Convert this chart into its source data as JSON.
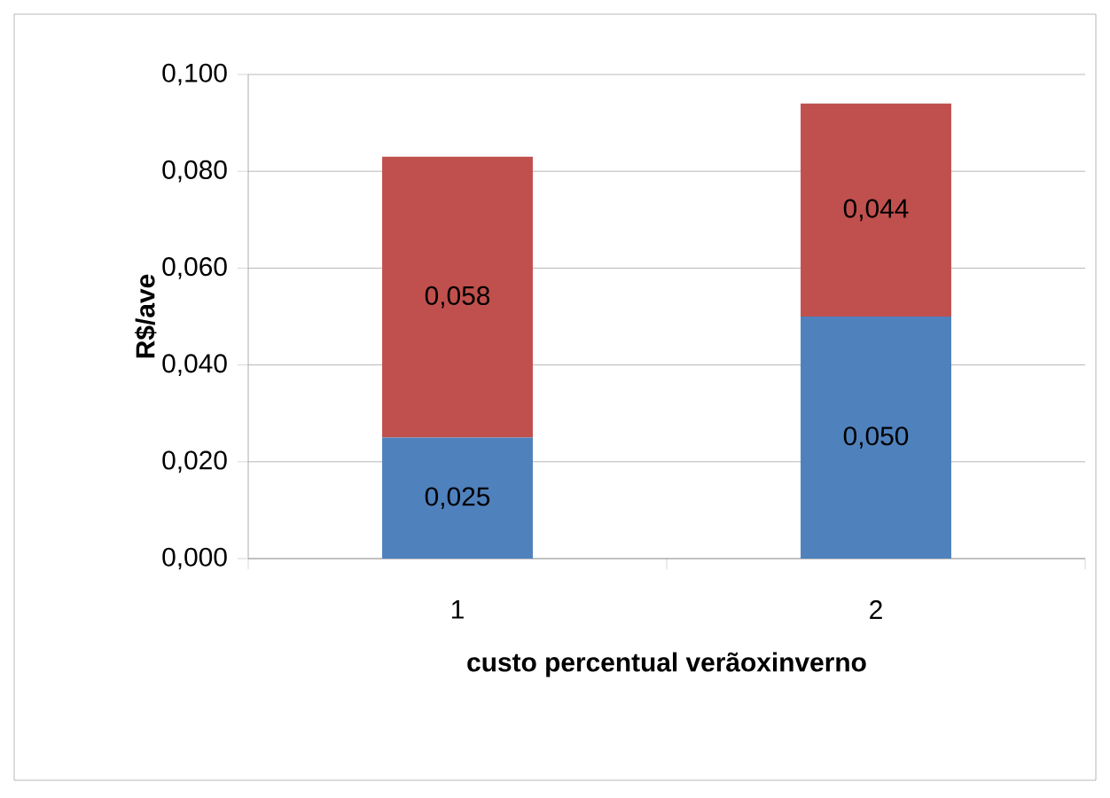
{
  "chart_data": {
    "type": "bar",
    "stacked": true,
    "xlabel": "custo percentual verãoxinverno",
    "ylabel": "R$/ave",
    "categories": [
      "1",
      "2"
    ],
    "series": [
      {
        "color": "#4f81bd",
        "values": [
          0.025,
          0.05
        ],
        "value_labels": [
          "0,025",
          "0,050"
        ]
      },
      {
        "color": "#c0504d",
        "values": [
          0.058,
          0.044
        ],
        "value_labels": [
          "0,058",
          "0,044"
        ]
      }
    ],
    "ylim": [
      0,
      0.1
    ],
    "yticks": [
      {
        "value": 0,
        "label": "0,000"
      },
      {
        "value": 0.02,
        "label": "0,020"
      },
      {
        "value": 0.04,
        "label": "0,040"
      },
      {
        "value": 0.06,
        "label": "0,060"
      },
      {
        "value": 0.08,
        "label": "0,080"
      },
      {
        "value": 0.1,
        "label": "0,100"
      }
    ],
    "grid": "y"
  }
}
